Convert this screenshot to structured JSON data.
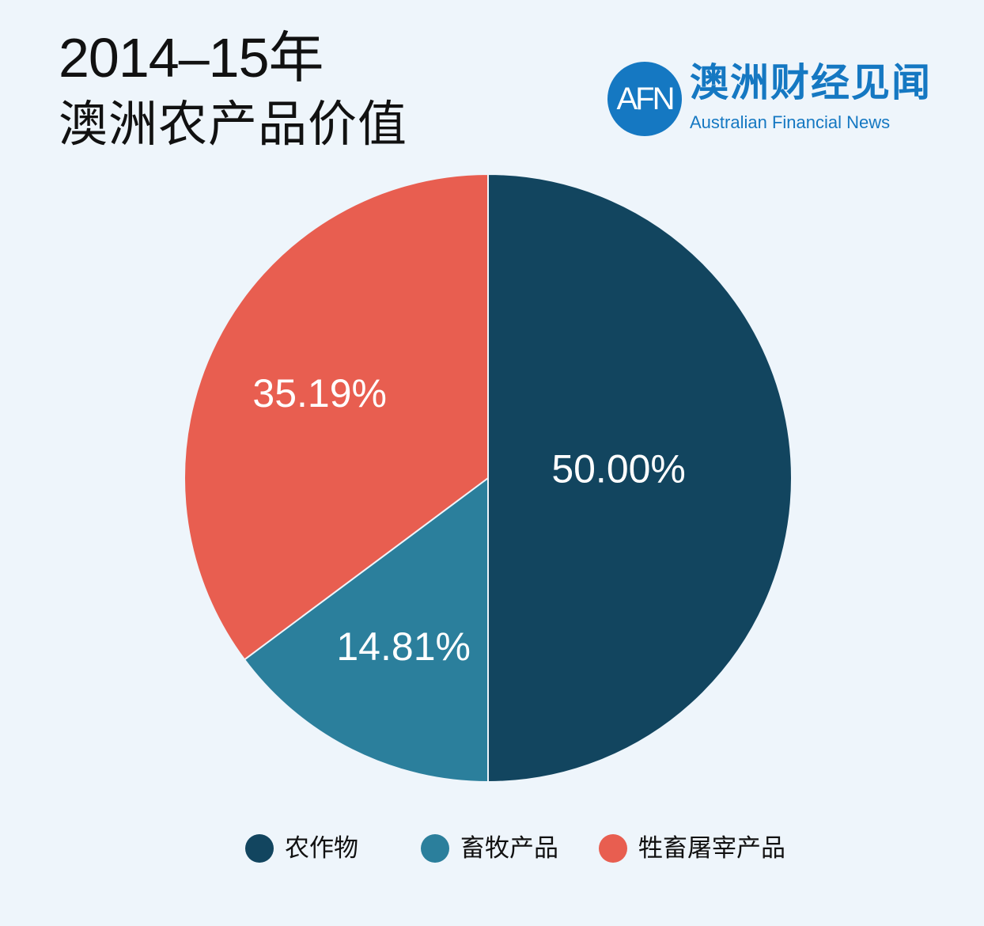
{
  "title": {
    "line1": "2014–15年",
    "line2": "澳洲农产品价值"
  },
  "brand": {
    "logo_text": "AFN",
    "name_cn": "澳洲财经见闻",
    "name_en": "Australian Financial News",
    "color": "#1578c2"
  },
  "chart_data": {
    "type": "pie",
    "title": "2014–15年 澳洲农产品价值",
    "start": "12 o'clock",
    "direction": "clockwise",
    "slices": [
      {
        "name": "农作物",
        "value": 50.0,
        "label": "50.00%",
        "color": "#12455f"
      },
      {
        "name": "畜牧产品",
        "value": 14.81,
        "label": "14.81%",
        "color": "#2b7f9c"
      },
      {
        "name": "牲畜屠宰产品",
        "value": 35.19,
        "label": "35.19%",
        "color": "#e85e50"
      }
    ],
    "legend_position": "bottom"
  }
}
